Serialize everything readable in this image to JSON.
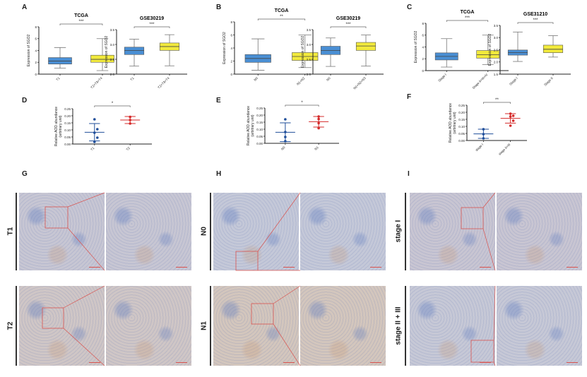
{
  "panels": {
    "A": {
      "letter": "A"
    },
    "B": {
      "letter": "B"
    },
    "C": {
      "letter": "C"
    },
    "D": {
      "letter": "D"
    },
    "E": {
      "letter": "E"
    },
    "F": {
      "letter": "F"
    },
    "G": {
      "letter": "G",
      "rows": [
        "T1",
        "T2"
      ]
    },
    "H": {
      "letter": "H",
      "rows": [
        "N0",
        "N1"
      ]
    },
    "I": {
      "letter": "I",
      "rows": [
        "stage I",
        "stage II + III"
      ]
    }
  },
  "colors": {
    "box_blue": "#4a8fd4",
    "box_yellow": "#f2ea3c",
    "dot_blue": "#1f4e9a",
    "dot_red": "#d42a2a",
    "zoom_box": "#d9534f",
    "ihc_bg": "#c9c8cf"
  },
  "chart_data": [
    {
      "panel": "A",
      "type": "box",
      "title": "TCGA",
      "ylabel": "Expression of SGO2",
      "ylim": [
        0,
        8
      ],
      "yticks": [
        "0",
        "2",
        "4",
        "6",
        "8"
      ],
      "categories": [
        "T1",
        "T2+T3+T4"
      ],
      "significance": "***",
      "series": [
        {
          "name": "T1",
          "color": "#4a8fd4",
          "min": 1.0,
          "q1": 1.7,
          "median": 2.2,
          "q3": 2.8,
          "max": 4.5
        },
        {
          "name": "T2+T3+T4",
          "color": "#f2ea3c",
          "min": 0.6,
          "q1": 2.0,
          "median": 2.5,
          "q3": 3.2,
          "max": 6.0
        }
      ]
    },
    {
      "panel": "A",
      "type": "box",
      "title": "GSE30219",
      "ylabel": "Expression of SGO2",
      "ylim": [
        2.0,
        3.5
      ],
      "yticks": [
        "2.0",
        "2.5",
        "3.0",
        "3.5"
      ],
      "categories": [
        "T1",
        "T2+T3+T4"
      ],
      "significance": "***",
      "series": [
        {
          "name": "T1",
          "color": "#4a8fd4",
          "min": 2.27,
          "q1": 2.66,
          "median": 2.8,
          "q3": 2.91,
          "max": 3.18
        },
        {
          "name": "T2+T3+T4",
          "color": "#f2ea3c",
          "min": 2.28,
          "q1": 2.8,
          "median": 2.93,
          "q3": 3.05,
          "max": 3.33
        }
      ]
    },
    {
      "panel": "B",
      "type": "box",
      "title": "TCGA",
      "ylabel": "Expression of SGO2",
      "ylim": [
        0,
        8
      ],
      "yticks": [
        "0",
        "2",
        "4",
        "6",
        "8"
      ],
      "categories": [
        "N0",
        "N1+N2"
      ],
      "significance": "**",
      "series": [
        {
          "name": "N0",
          "color": "#4a8fd4",
          "min": 0.6,
          "q1": 1.8,
          "median": 2.4,
          "q3": 3.0,
          "max": 5.4
        },
        {
          "name": "N1+N2",
          "color": "#f2ea3c",
          "min": 1.0,
          "q1": 2.1,
          "median": 2.7,
          "q3": 3.3,
          "max": 6.0
        }
      ]
    },
    {
      "panel": "B",
      "type": "box",
      "title": "GSE30219",
      "ylabel": "Expression of SGO2",
      "ylim": [
        2.0,
        3.5
      ],
      "yticks": [
        "2.0",
        "2.5",
        "3.0",
        "3.5"
      ],
      "categories": [
        "N0",
        "N1+N2+N3"
      ],
      "significance": "***",
      "series": [
        {
          "name": "N0",
          "color": "#4a8fd4",
          "min": 2.26,
          "q1": 2.66,
          "median": 2.8,
          "q3": 2.94,
          "max": 3.22
        },
        {
          "name": "N1+N2+N3",
          "color": "#f2ea3c",
          "min": 2.27,
          "q1": 2.8,
          "median": 2.95,
          "q3": 3.07,
          "max": 3.32
        }
      ]
    },
    {
      "panel": "C",
      "type": "box",
      "title": "TCGA",
      "ylabel": "Expression of SGO2",
      "ylim": [
        0,
        8
      ],
      "yticks": [
        "0",
        "2",
        "4",
        "6",
        "8"
      ],
      "categories": [
        "Stage I",
        "Stage II+III+IV"
      ],
      "significance": "***",
      "series": [
        {
          "name": "Stage I",
          "color": "#4a8fd4",
          "min": 0.6,
          "q1": 1.8,
          "median": 2.4,
          "q3": 3.0,
          "max": 5.4
        },
        {
          "name": "Stage II+III+IV",
          "color": "#f2ea3c",
          "min": 1.0,
          "q1": 2.1,
          "median": 2.7,
          "q3": 3.4,
          "max": 6.0
        }
      ]
    },
    {
      "panel": "C",
      "type": "box",
      "title": "GSE31210",
      "ylabel": "Expression of SGO2",
      "ylim": [
        1.5,
        3.5
      ],
      "yticks": [
        "1.5",
        "2.0",
        "2.5",
        "3.0",
        "3.5"
      ],
      "categories": [
        "Stage I",
        "Stage II"
      ],
      "significance": "***",
      "series": [
        {
          "name": "Stage I",
          "color": "#4a8fd4",
          "min": 2.02,
          "q1": 2.28,
          "median": 2.38,
          "q3": 2.49,
          "max": 3.23
        },
        {
          "name": "Stage II",
          "color": "#f2ea3c",
          "min": 2.2,
          "q1": 2.38,
          "median": 2.52,
          "q3": 2.69,
          "max": 3.08
        }
      ]
    },
    {
      "panel": "D",
      "type": "scatter",
      "ylabel": "Relative AOD abundance (arbitrary unit)",
      "ylim": [
        0,
        0.25
      ],
      "yticks": [
        "0.00",
        "0.05",
        "0.10",
        "0.15",
        "0.20",
        "0.25"
      ],
      "categories": [
        "T1",
        "T2"
      ],
      "significance": "*",
      "series": [
        {
          "name": "T1",
          "color": "#1f4e9a",
          "points": [
            0.175,
            0.105,
            0.08,
            0.045,
            0.015
          ],
          "mean": 0.083,
          "sd_low": 0.022,
          "sd_high": 0.145
        },
        {
          "name": "T2",
          "color": "#d42a2a",
          "points": [
            0.192,
            0.17,
            0.145
          ],
          "mean": 0.17,
          "sd_low": 0.145,
          "sd_high": 0.195
        }
      ]
    },
    {
      "panel": "E",
      "type": "scatter",
      "ylabel": "Relative AOD abundance (arbitrary unit)",
      "ylim": [
        0,
        0.25
      ],
      "yticks": [
        "0.00",
        "0.05",
        "0.10",
        "0.15",
        "0.20",
        "0.25"
      ],
      "categories": [
        "N0",
        "N1"
      ],
      "significance": "*",
      "series": [
        {
          "name": "N0",
          "color": "#1f4e9a",
          "points": [
            0.17,
            0.08,
            0.045,
            0.015
          ],
          "mean": 0.078,
          "sd_low": 0.012,
          "sd_high": 0.145
        },
        {
          "name": "N1",
          "color": "#d42a2a",
          "points": [
            0.19,
            0.172,
            0.143,
            0.107
          ],
          "mean": 0.153,
          "sd_low": 0.115,
          "sd_high": 0.19
        }
      ]
    },
    {
      "panel": "F",
      "type": "scatter",
      "ylabel": "Relative AOD abundance (arbitrary unit)",
      "ylim": [
        0,
        0.25
      ],
      "yticks": [
        "0.00",
        "0.05",
        "0.10",
        "0.15",
        "0.20",
        "0.25"
      ],
      "categories": [
        "stage I",
        "stage II+III"
      ],
      "significance": "**",
      "series": [
        {
          "name": "stage I",
          "color": "#1f4e9a",
          "points": [
            0.08,
            0.045,
            0.015
          ],
          "mean": 0.047,
          "sd_low": 0.015,
          "sd_high": 0.08
        },
        {
          "name": "stage II+III",
          "color": "#d42a2a",
          "points": [
            0.19,
            0.175,
            0.17,
            0.14,
            0.105
          ],
          "mean": 0.157,
          "sd_low": 0.123,
          "sd_high": 0.19
        }
      ]
    }
  ]
}
